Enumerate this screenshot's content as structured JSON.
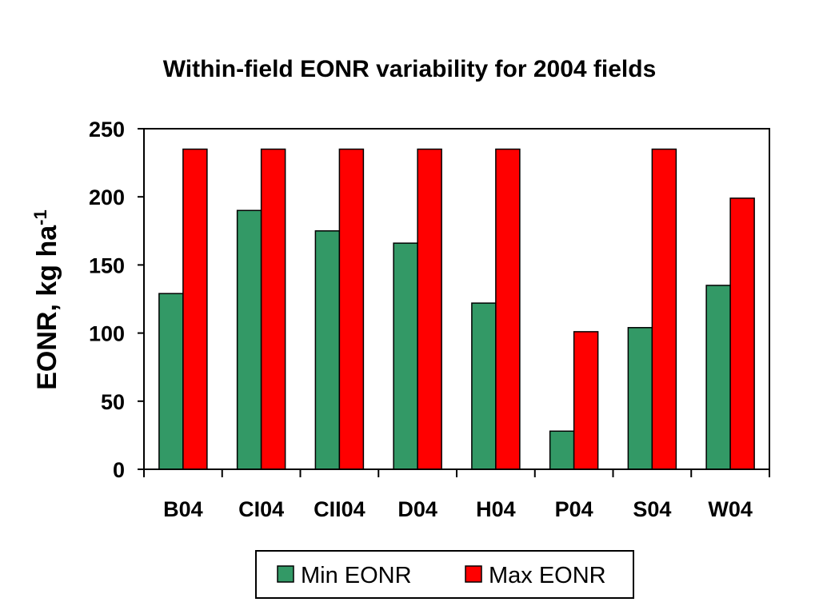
{
  "chart_data": {
    "type": "bar",
    "title": "Within-field EONR variability for 2004 fields",
    "ylabel": "EONR, kg ha",
    "ylabel_superscript": "-1",
    "xlabel": "",
    "ylim": [
      0,
      250
    ],
    "yticks": [
      0,
      50,
      100,
      150,
      200,
      250
    ],
    "categories": [
      "B04",
      "CI04",
      "CII04",
      "D04",
      "H04",
      "P04",
      "S04",
      "W04"
    ],
    "series": [
      {
        "name": "Min EONR",
        "color": "#339966",
        "values": [
          129,
          190,
          175,
          166,
          122,
          28,
          104,
          135
        ]
      },
      {
        "name": "Max EONR",
        "color": "#ff0000",
        "values": [
          235,
          235,
          235,
          235,
          235,
          101,
          235,
          199
        ]
      }
    ],
    "legend_position": "bottom"
  }
}
